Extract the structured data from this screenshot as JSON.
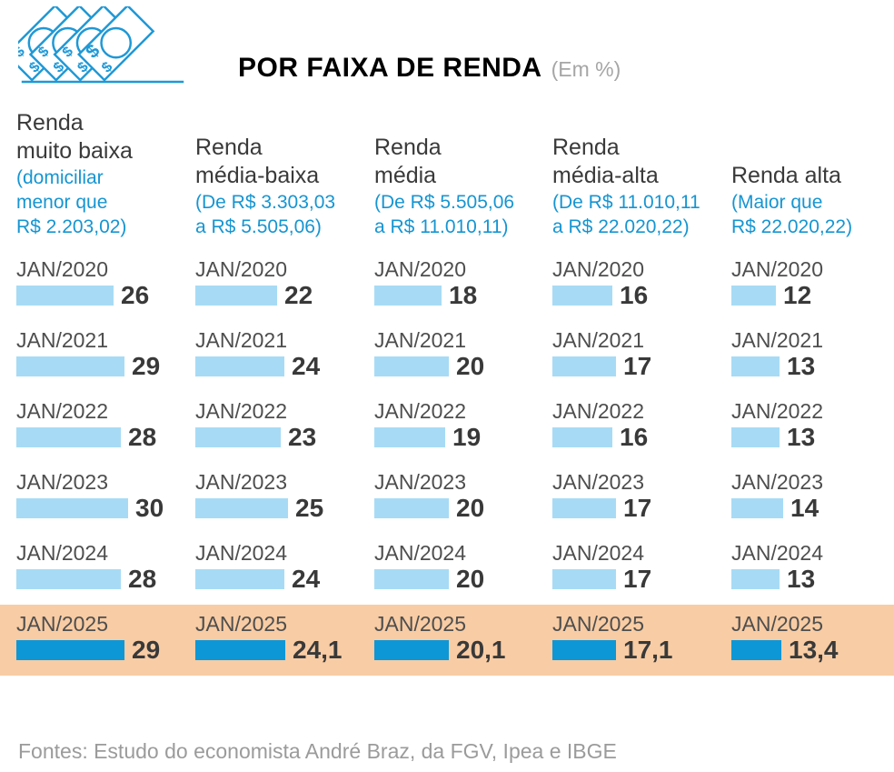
{
  "header": {
    "title": "POR FAIXA DE RENDA",
    "unit": "(Em %)",
    "icon": "money-banknotes-icon"
  },
  "colors": {
    "icon_blue": "#1e98d6",
    "bar_light": "#a7dbf5",
    "bar_highlight": "#0d97d6",
    "highlight_row_bg": "#f8cca4",
    "range_text_blue": "#1695d2"
  },
  "chart_data": {
    "type": "bar",
    "orientation": "horizontal",
    "unit": "%",
    "title": "POR FAIXA DE RENDA (Em %)",
    "value_axis_max": 30,
    "grid": false,
    "categories": [
      "JAN/2020",
      "JAN/2021",
      "JAN/2022",
      "JAN/2023",
      "JAN/2024",
      "JAN/2025"
    ],
    "highlight_category": "JAN/2025",
    "series": [
      {
        "name": "Renda muito baixa",
        "name_lines": [
          "Renda",
          "muito baixa"
        ],
        "range": "(domiciliar menor que R$ 2.203,02)",
        "range_lines": [
          "(domiciliar",
          "menor que",
          "R$ 2.203,02)"
        ],
        "values": [
          26,
          29,
          28,
          30,
          28,
          29
        ],
        "labels": [
          "26",
          "29",
          "28",
          "30",
          "28",
          "29"
        ]
      },
      {
        "name": "Renda média-baixa",
        "name_lines": [
          "Renda",
          "média-baixa"
        ],
        "range": "(De R$ 3.303,03 a R$ 5.505,06)",
        "range_lines": [
          "(De R$ 3.303,03",
          "a R$ 5.505,06)"
        ],
        "values": [
          22,
          24,
          23,
          25,
          24,
          24.1
        ],
        "labels": [
          "22",
          "24",
          "23",
          "25",
          "24",
          "24,1"
        ]
      },
      {
        "name": "Renda média",
        "name_lines": [
          "Renda",
          "média"
        ],
        "range": "(De R$ 5.505,06 a R$ 11.010,11)",
        "range_lines": [
          "(De R$ 5.505,06",
          "a R$ 11.010,11)"
        ],
        "values": [
          18,
          20,
          19,
          20,
          20,
          20.1
        ],
        "labels": [
          "18",
          "20",
          "19",
          "20",
          "20",
          "20,1"
        ]
      },
      {
        "name": "Renda média-alta",
        "name_lines": [
          "Renda",
          "média-alta"
        ],
        "range": "(De R$ 11.010,11 a R$ 22.020,22)",
        "range_lines": [
          "(De R$ 11.010,11",
          "a R$ 22.020,22)"
        ],
        "values": [
          16,
          17,
          16,
          17,
          17,
          17.1
        ],
        "labels": [
          "16",
          "17",
          "16",
          "17",
          "17",
          "17,1"
        ]
      },
      {
        "name": "Renda alta",
        "name_lines": [
          "Renda alta"
        ],
        "range": "(Maior que R$ 22.020,22)",
        "range_lines": [
          "(Maior que",
          "R$ 22.020,22)"
        ],
        "values": [
          12,
          13,
          13,
          14,
          13,
          13.4
        ],
        "labels": [
          "12",
          "13",
          "13",
          "14",
          "13",
          "13,4"
        ]
      }
    ]
  },
  "footer": {
    "source": "Fontes: Estudo do economista André Braz, da FGV, Ipea e IBGE"
  }
}
